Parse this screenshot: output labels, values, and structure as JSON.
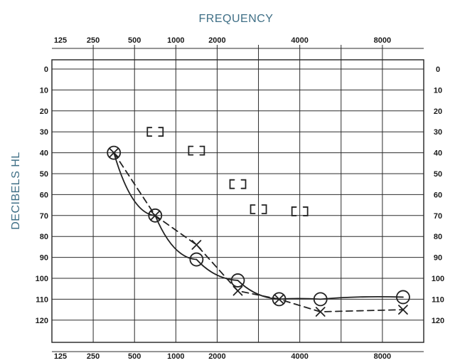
{
  "chart_data": {
    "type": "line",
    "title": "",
    "xlabel": "FREQUENCY",
    "ylabel": "DECIBELS HL",
    "x_categories": [
      "125",
      "250",
      "500",
      "1000",
      "2000",
      "",
      "4000",
      "",
      "8000"
    ],
    "y_ticks": [
      "0",
      "10",
      "20",
      "30",
      "40",
      "50",
      "60",
      "70",
      "80",
      "90",
      "100",
      "110",
      "120"
    ],
    "ylim": [
      0,
      120
    ],
    "y_inverted": true,
    "grid": true,
    "series": [
      {
        "marker": "circle",
        "line": "solid",
        "color": "#222222",
        "points": [
          {
            "x": 1,
            "y": 40
          },
          {
            "x": 2,
            "y": 70
          },
          {
            "x": 3,
            "y": 91
          },
          {
            "x": 4,
            "y": 101
          },
          {
            "x": 5,
            "y": 110
          },
          {
            "x": 6,
            "y": 110
          },
          {
            "x": 8,
            "y": 109
          }
        ]
      },
      {
        "marker": "cross",
        "line": "dashed",
        "color": "#222222",
        "points": [
          {
            "x": 1,
            "y": 40
          },
          {
            "x": 2,
            "y": 70
          },
          {
            "x": 3,
            "y": 84
          },
          {
            "x": 4,
            "y": 106
          },
          {
            "x": 5,
            "y": 110
          },
          {
            "x": 6,
            "y": 116
          },
          {
            "x": 8,
            "y": 115
          }
        ]
      }
    ],
    "bone_conduction": [
      {
        "x": 2,
        "y": 30
      },
      {
        "x": 3,
        "y": 39
      },
      {
        "x": 4,
        "y": 55
      },
      {
        "x": 4.5,
        "y": 67
      },
      {
        "x": 5.5,
        "y": 68
      }
    ]
  }
}
